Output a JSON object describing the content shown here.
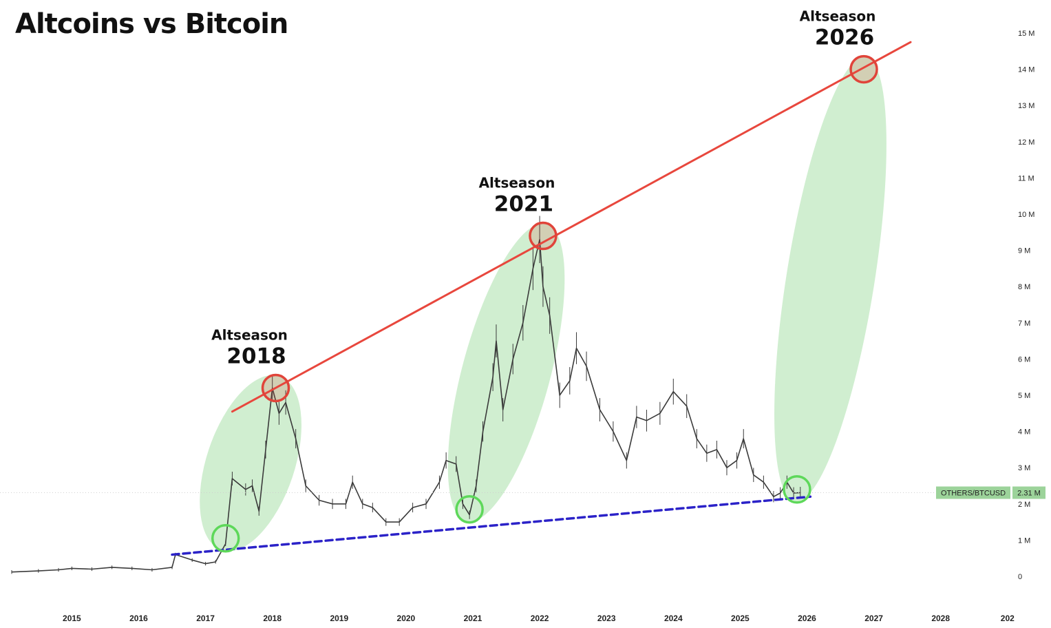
{
  "chart_data": {
    "type": "line",
    "title": "Altcoins vs Bitcoin",
    "x_tick_labels": [
      "2015",
      "2016",
      "2017",
      "2018",
      "2019",
      "2020",
      "2021",
      "2022",
      "2023",
      "2024",
      "2025",
      "2026",
      "2027",
      "2028",
      "202"
    ],
    "y_tick_labels": [
      "0",
      "1 M",
      "2 M",
      "3 M",
      "4 M",
      "5 M",
      "6 M",
      "7 M",
      "8 M",
      "9 M",
      "10 M",
      "11 M",
      "12 M",
      "13 M",
      "14 M",
      "15 M"
    ],
    "xlim": [
      2014.1,
      2028.9
    ],
    "ylim": [
      0,
      15
    ],
    "y_unit": "M",
    "series": [
      {
        "name": "OTHERS/BTCUSD",
        "color": "#3a3a3a",
        "x": [
          2014.1,
          2014.5,
          2014.8,
          2015.0,
          2015.3,
          2015.6,
          2015.9,
          2016.2,
          2016.5,
          2016.55,
          2016.8,
          2017.0,
          2017.15,
          2017.3,
          2017.4,
          2017.6,
          2017.7,
          2017.8,
          2017.9,
          2018.0,
          2018.1,
          2018.2,
          2018.35,
          2018.5,
          2018.7,
          2018.9,
          2019.1,
          2019.2,
          2019.35,
          2019.5,
          2019.7,
          2019.9,
          2020.1,
          2020.3,
          2020.5,
          2020.6,
          2020.75,
          2020.85,
          2020.95,
          2021.05,
          2021.15,
          2021.3,
          2021.35,
          2021.45,
          2021.6,
          2021.75,
          2021.9,
          2022.0,
          2022.05,
          2022.15,
          2022.3,
          2022.45,
          2022.55,
          2022.7,
          2022.9,
          2023.1,
          2023.3,
          2023.45,
          2023.6,
          2023.8,
          2024.0,
          2024.2,
          2024.35,
          2024.5,
          2024.65,
          2024.8,
          2024.95,
          2025.05,
          2025.2,
          2025.35,
          2025.5,
          2025.6,
          2025.7,
          2025.8,
          2025.9
        ],
        "values": [
          0.12,
          0.15,
          0.18,
          0.22,
          0.2,
          0.25,
          0.22,
          0.18,
          0.25,
          0.6,
          0.45,
          0.35,
          0.4,
          0.9,
          2.7,
          2.4,
          2.5,
          1.8,
          3.5,
          5.2,
          4.5,
          4.8,
          3.8,
          2.5,
          2.1,
          2.0,
          2.0,
          2.6,
          2.0,
          1.9,
          1.5,
          1.5,
          1.9,
          2.0,
          2.6,
          3.2,
          3.1,
          2.0,
          1.7,
          2.5,
          4.0,
          5.5,
          6.5,
          4.6,
          6.0,
          7.0,
          8.5,
          9.3,
          8.0,
          7.2,
          5.0,
          5.4,
          6.3,
          5.8,
          4.6,
          4.0,
          3.2,
          4.4,
          4.3,
          4.5,
          5.1,
          4.7,
          3.8,
          3.4,
          3.5,
          3.0,
          3.2,
          3.8,
          2.8,
          2.6,
          2.2,
          2.3,
          2.6,
          2.3,
          2.31
        ]
      }
    ],
    "trendlines": [
      {
        "name": "resistance",
        "color": "#e8473d",
        "style": "solid",
        "x": [
          2017.4,
          2027.55
        ],
        "y": [
          4.55,
          14.75
        ]
      },
      {
        "name": "support",
        "color": "#2b22c8",
        "style": "dashed",
        "x": [
          2016.5,
          2026.05
        ],
        "y": [
          0.6,
          2.2
        ]
      }
    ],
    "annotations": [
      {
        "word": "Altseason",
        "year": "2018",
        "x": 2018.05,
        "y": 5.2
      },
      {
        "word": "Altseason",
        "year": "2021",
        "x": 2022.05,
        "y": 9.4
      },
      {
        "word": "Altseason",
        "year": "2026",
        "x": 2026.85,
        "y": 14.0
      }
    ],
    "lows": [
      {
        "x": 2017.3,
        "y": 1.05
      },
      {
        "x": 2020.95,
        "y": 1.85
      },
      {
        "x": 2025.85,
        "y": 2.4
      }
    ],
    "current_value_tag": {
      "label": "OTHERS/BTCUSD",
      "value": "2.31 M",
      "y": 2.31
    },
    "colors": {
      "highlight": "#c8ebc8",
      "peak_circle": "#e0443a",
      "low_circle": "#5ed85a",
      "tag_bg": "#9cd39a"
    },
    "grid": false,
    "legend": "none"
  }
}
